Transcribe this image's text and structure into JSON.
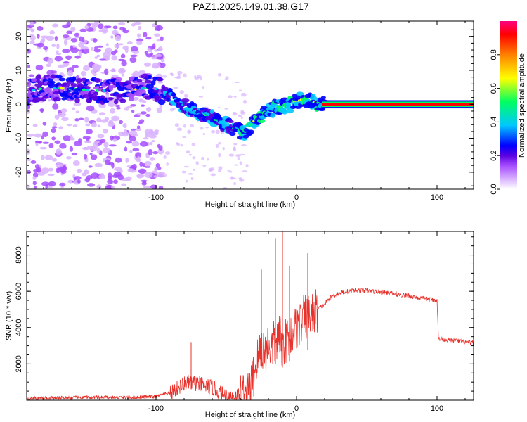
{
  "title": "PAZ1.2025.149.01.38.G17",
  "chart_data": [
    {
      "type": "heatmap",
      "xlabel": "Height of straight line (km)",
      "ylabel": "Frequency (Hz)",
      "xlim": [
        -192,
        126
      ],
      "ylim": [
        -25,
        24.5
      ],
      "x_ticks": [
        -100,
        0,
        100
      ],
      "y_ticks": [
        -20,
        -10,
        0,
        10,
        20
      ],
      "colorbar": {
        "label": "Normalized spectral amplitude",
        "range": [
          0,
          1
        ],
        "ticks": [
          0.0,
          0.2,
          0.4,
          0.6,
          0.8
        ],
        "tick_labels": [
          "0.0",
          "0.2",
          "0.4",
          "0.6",
          "0.8"
        ],
        "colormap": [
          "#ffffff",
          "#d9b3ff",
          "#a64dff",
          "#5a00e0",
          "#0000ff",
          "#00c8ff",
          "#00ff60",
          "#ffff00",
          "#ff8000",
          "#ff0000",
          "#ff0080"
        ]
      },
      "ridge": [
        {
          "x": -190,
          "y": 4
        },
        {
          "x": -175,
          "y": 5
        },
        {
          "x": -160,
          "y": 4.5
        },
        {
          "x": -140,
          "y": 4
        },
        {
          "x": -120,
          "y": 4
        },
        {
          "x": -105,
          "y": 5
        },
        {
          "x": -95,
          "y": 4
        },
        {
          "x": -85,
          "y": 1
        },
        {
          "x": -75,
          "y": -1.5
        },
        {
          "x": -65,
          "y": -3
        },
        {
          "x": -55,
          "y": -5
        },
        {
          "x": -45,
          "y": -7
        },
        {
          "x": -37,
          "y": -8.5
        },
        {
          "x": -30,
          "y": -5
        },
        {
          "x": -25,
          "y": -3
        },
        {
          "x": -15,
          "y": -1
        },
        {
          "x": -5,
          "y": 0
        },
        {
          "x": 5,
          "y": 1.5
        },
        {
          "x": 15,
          "y": 0.5
        },
        {
          "x": 20,
          "y": 0
        },
        {
          "x": 126,
          "y": 0
        }
      ]
    },
    {
      "type": "line",
      "xlabel": "Height of straight line (km)",
      "ylabel": "SNR (10 * v/v)",
      "xlim": [
        -192,
        126
      ],
      "ylim": [
        0,
        9300
      ],
      "x_ticks": [
        -100,
        0,
        100
      ],
      "y_ticks": [
        2000,
        4000,
        6000,
        8000
      ],
      "series": [
        {
          "color": "#e8322c",
          "x": [
            -192,
            -150,
            -120,
            -100,
            -90,
            -80,
            -75,
            -70,
            -65,
            -60,
            -55,
            -50,
            -45,
            -40,
            -35,
            -33,
            -30,
            -28,
            -25,
            -22,
            -20,
            -18,
            -15,
            -12,
            -10,
            -8,
            -5,
            0,
            5,
            10,
            15,
            20,
            25,
            30,
            40,
            50,
            60,
            70,
            80,
            90,
            100,
            101,
            110,
            126
          ],
          "y": [
            100,
            150,
            150,
            200,
            400,
            900,
            1000,
            900,
            800,
            700,
            400,
            250,
            200,
            300,
            400,
            800,
            1500,
            2200,
            3000,
            2500,
            3200,
            2800,
            3300,
            3500,
            3000,
            3200,
            3600,
            4000,
            4500,
            4700,
            5000,
            5300,
            5700,
            5900,
            6050,
            6050,
            5950,
            5850,
            5750,
            5600,
            5500,
            3400,
            3300,
            3150
          ]
        }
      ]
    }
  ]
}
